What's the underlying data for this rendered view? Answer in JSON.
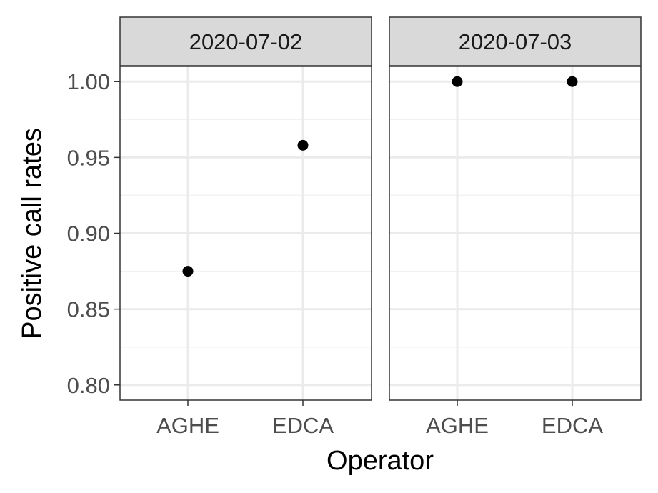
{
  "chart_data": {
    "type": "scatter",
    "xlabel": "Operator",
    "ylabel": "Positive call rates",
    "ylim": [
      0.79,
      1.01
    ],
    "yticks": [
      0.8,
      0.85,
      0.9,
      0.95,
      1.0
    ],
    "ytick_labels": [
      "0.80",
      "0.85",
      "0.90",
      "0.95",
      "1.00"
    ],
    "categories": [
      "AGHE",
      "EDCA"
    ],
    "grid": true,
    "legend": "none",
    "colors": {
      "point": "#000000",
      "strip_fill": "#d9d9d9",
      "panel_border": "#333333",
      "grid_major": "#ebebeb",
      "grid_minor": "#f2f2f2"
    },
    "facets": [
      {
        "label": "2020-07-02",
        "x": [
          "AGHE",
          "EDCA"
        ],
        "y": [
          0.875,
          0.958
        ]
      },
      {
        "label": "2020-07-03",
        "x": [
          "AGHE",
          "EDCA"
        ],
        "y": [
          1.0,
          1.0
        ]
      }
    ]
  }
}
